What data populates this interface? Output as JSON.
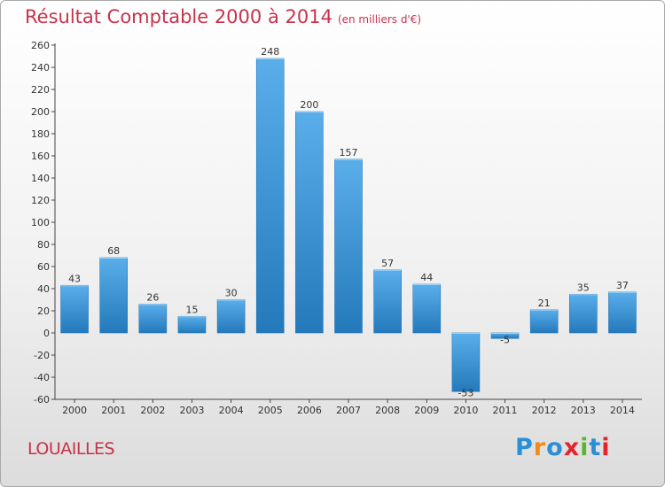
{
  "title": "Résultat Comptable 2000 à 2014",
  "subtitle": "(en milliers d'€)",
  "commune": "LOUAILLES",
  "brand": {
    "letters": [
      "P",
      "r",
      "o",
      "x",
      "i",
      "t",
      "i"
    ],
    "colors": [
      "#2a8fd6",
      "#f08a1c",
      "#2a8fd6",
      "#e3242b",
      "#5cb531",
      "#2a8fd6",
      "#e3242b"
    ]
  },
  "colors": {
    "title": "#c8324a",
    "bar_light": "#5aaeea",
    "bar_dark": "#2479bb"
  },
  "chart_data": {
    "type": "bar",
    "title": "Résultat Comptable 2000 à 2014",
    "xlabel": "",
    "ylabel": "en milliers d'€",
    "categories": [
      "2000",
      "2001",
      "2002",
      "2003",
      "2004",
      "2005",
      "2006",
      "2007",
      "2008",
      "2009",
      "2010",
      "2011",
      "2012",
      "2013",
      "2014"
    ],
    "values": [
      43,
      68,
      26,
      15,
      30,
      248,
      200,
      157,
      57,
      44,
      -53,
      -5,
      21,
      35,
      37
    ],
    "ylim": [
      -60,
      260
    ],
    "yticks": [
      -60,
      -40,
      -20,
      0,
      20,
      40,
      60,
      80,
      100,
      120,
      140,
      160,
      180,
      200,
      220,
      240,
      260
    ],
    "grid": false,
    "legend": "none"
  }
}
